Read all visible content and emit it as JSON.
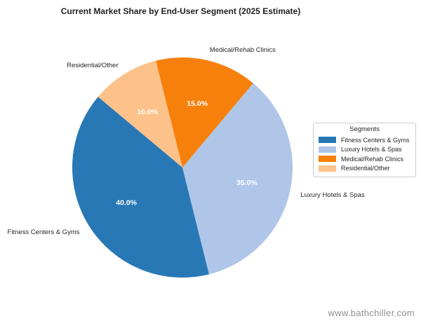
{
  "watermark": "www.bathchiller.com",
  "legend": {
    "title": "Segments"
  },
  "chart_data": {
    "type": "pie",
    "title": "Current Market Share by End-User Segment (2025 Estimate)",
    "categories": [
      "Fitness Centers & Gyms",
      "Luxury Hotels & Spas",
      "Medical/Rehab Clinics",
      "Residential/Other"
    ],
    "values": [
      40.0,
      35.0,
      15.0,
      10.0
    ],
    "percent_labels": [
      "40.0%",
      "35.0%",
      "15.0%",
      "10.0%"
    ],
    "colors": [
      "#2878B5",
      "#AFC6E8",
      "#F7800D",
      "#FCC289"
    ],
    "start_angle_deg": 140,
    "counterclockwise": true,
    "legend_title": "Segments",
    "legend_position": "right",
    "background_color": "#ffffff",
    "percent_label_color": "#ffffff",
    "label_color": "#262626",
    "percent_label_radius_frac": 0.6,
    "outer_label_radius_frac": 1.1
  }
}
